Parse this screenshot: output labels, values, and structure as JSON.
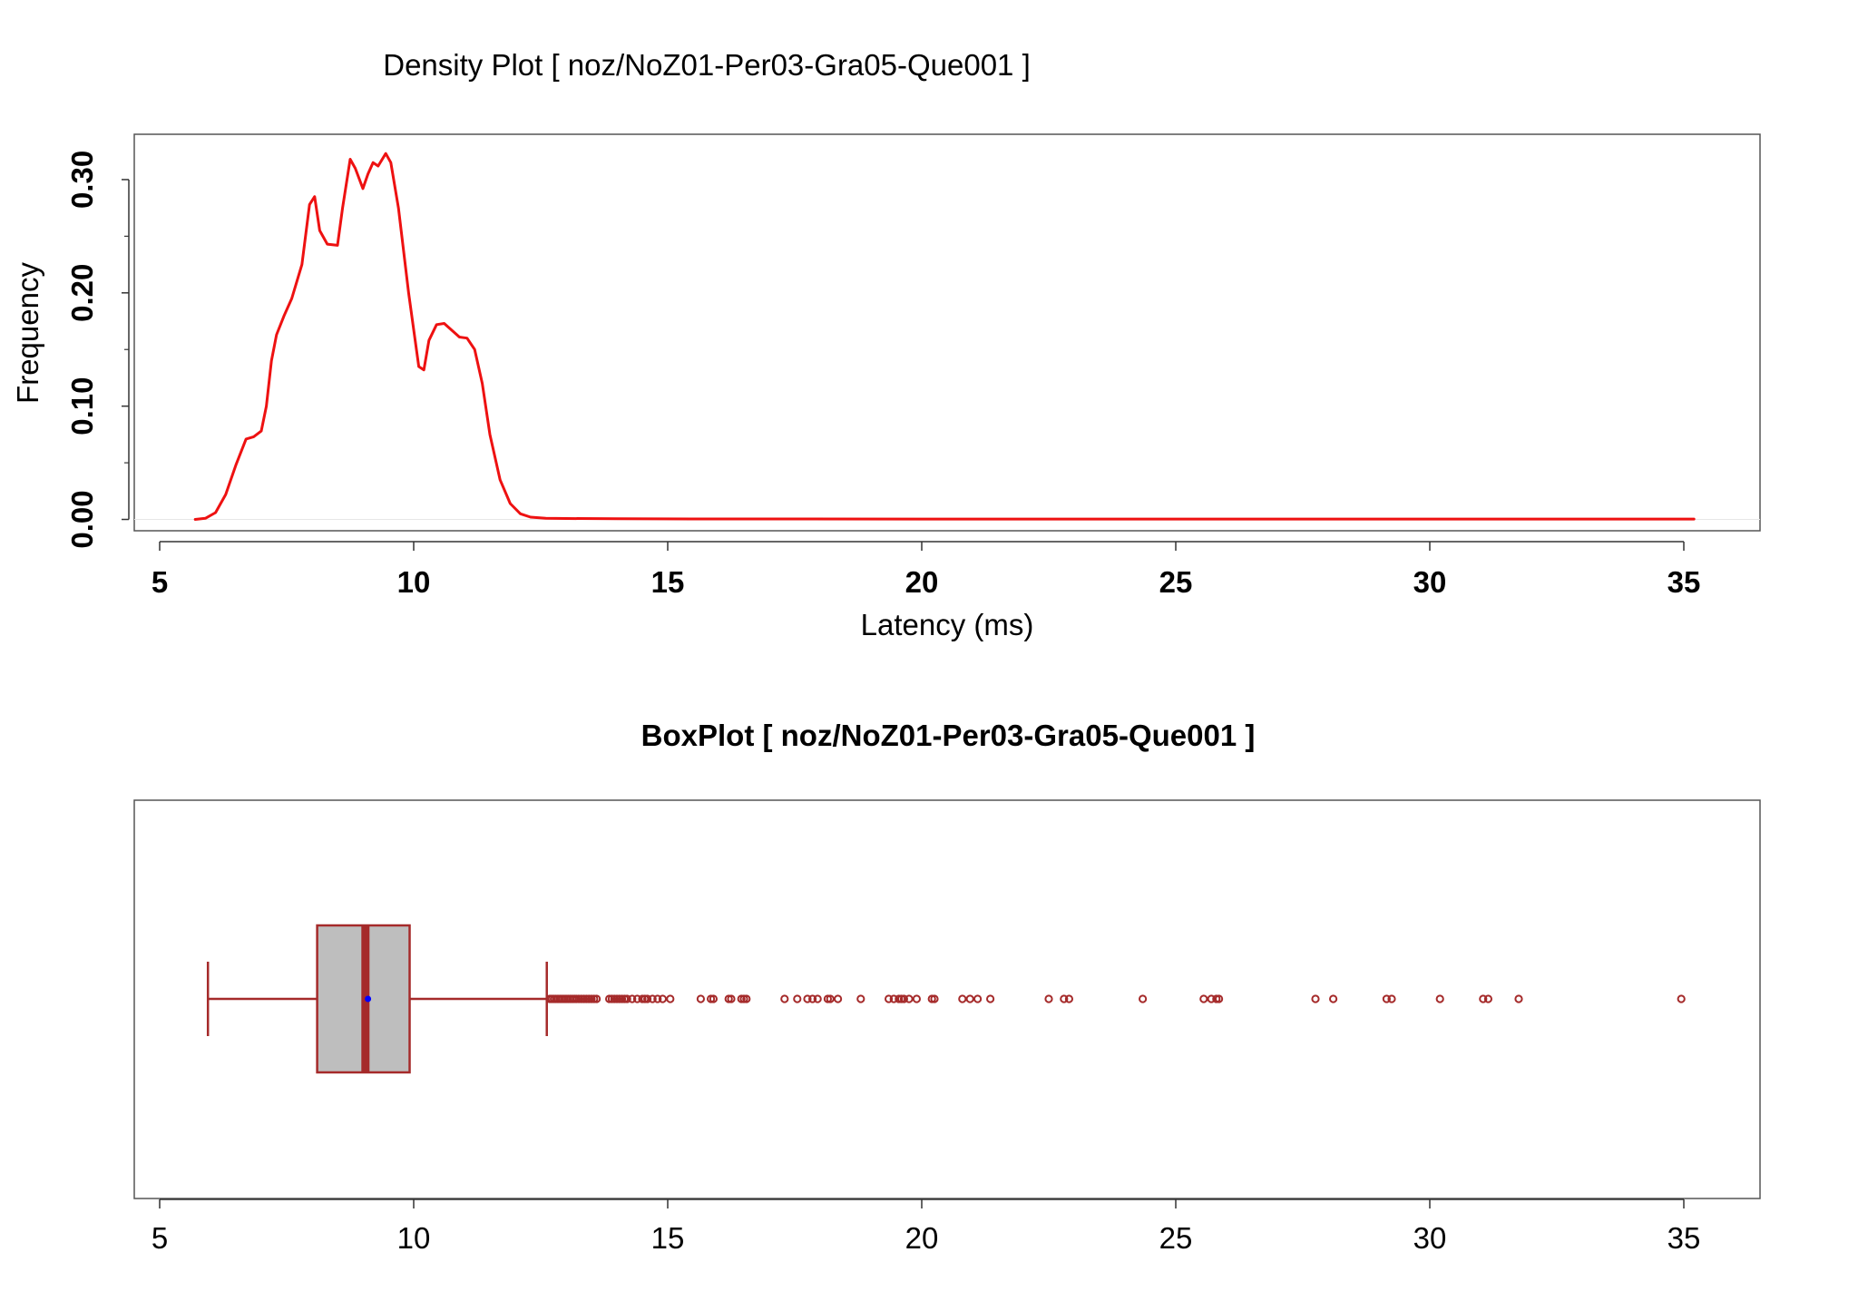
{
  "colors": {
    "density_line": "#ee1111",
    "box_border": "#a52a2a",
    "box_fill": "#bebebe",
    "mean_dot": "#0000ff",
    "frame": "#555555"
  },
  "chart_data": [
    {
      "type": "line",
      "title": "Density Plot [ noz/NoZ01-Per03-Gra05-Que001 ]",
      "xlabel": "Latency (ms)",
      "ylabel": "Frequency",
      "xlim": [
        4.5,
        36.5
      ],
      "ylim": [
        -0.01,
        0.34
      ],
      "x_ticks": [
        5,
        10,
        15,
        20,
        25,
        30,
        35
      ],
      "x_tick_labels": [
        "5",
        "10",
        "15",
        "20",
        "25",
        "30",
        "35"
      ],
      "y_ticks": [
        0.0,
        0.1,
        0.2,
        0.3
      ],
      "y_tick_labels": [
        "0.00",
        "0.10",
        "0.20",
        "0.30"
      ],
      "y_minor_ticks": [
        0.05,
        0.15,
        0.25
      ],
      "grid": false,
      "series": [
        {
          "x": [
            5.7,
            5.9,
            6.1,
            6.3,
            6.5,
            6.7,
            6.85,
            7.0,
            7.1,
            7.2,
            7.3,
            7.45,
            7.6,
            7.8,
            7.95,
            8.05,
            8.15,
            8.3,
            8.5,
            8.6,
            8.75,
            8.85,
            9.0,
            9.1,
            9.2,
            9.3,
            9.45,
            9.55,
            9.7,
            9.9,
            10.1,
            10.2,
            10.3,
            10.45,
            10.6,
            10.75,
            10.9,
            11.05,
            11.2,
            11.35,
            11.5,
            11.7,
            11.9,
            12.1,
            12.3,
            12.6,
            13.0,
            14.0,
            16.0,
            20.0,
            25.0,
            30.0,
            35.2
          ],
          "y": [
            0.0,
            0.001,
            0.006,
            0.022,
            0.048,
            0.071,
            0.073,
            0.078,
            0.1,
            0.14,
            0.163,
            0.18,
            0.195,
            0.225,
            0.278,
            0.285,
            0.255,
            0.243,
            0.242,
            0.275,
            0.318,
            0.31,
            0.292,
            0.305,
            0.315,
            0.312,
            0.323,
            0.315,
            0.275,
            0.2,
            0.135,
            0.132,
            0.158,
            0.172,
            0.173,
            0.167,
            0.161,
            0.16,
            0.15,
            0.12,
            0.075,
            0.035,
            0.014,
            0.005,
            0.002,
            0.001,
            0.0008,
            0.0006,
            0.0004,
            0.0003,
            0.0003,
            0.0003,
            0.0003
          ]
        }
      ]
    },
    {
      "type": "box",
      "title": "BoxPlot [ noz/NoZ01-Per03-Gra05-Que001 ]",
      "xlim": [
        4.5,
        36.5
      ],
      "x_ticks": [
        5,
        10,
        15,
        20,
        25,
        30,
        35
      ],
      "x_tick_labels": [
        "5",
        "10",
        "15",
        "20",
        "25",
        "30",
        "35"
      ],
      "whisker_low": 5.95,
      "q1": 8.1,
      "median": 9.05,
      "mean": 9.1,
      "q3": 9.92,
      "whisker_high": 12.62,
      "outliers": [
        12.68,
        12.72,
        12.76,
        12.8,
        12.84,
        12.88,
        12.92,
        12.96,
        13.0,
        13.04,
        13.08,
        13.12,
        13.16,
        13.2,
        13.25,
        13.3,
        13.35,
        13.4,
        13.45,
        13.5,
        13.55,
        13.6,
        13.85,
        13.9,
        13.95,
        14.0,
        14.05,
        14.1,
        14.15,
        14.2,
        14.3,
        14.4,
        14.5,
        14.55,
        14.6,
        14.7,
        14.8,
        14.9,
        15.05,
        15.65,
        15.85,
        15.9,
        16.2,
        16.25,
        16.45,
        16.5,
        16.55,
        17.3,
        17.55,
        17.75,
        17.85,
        17.95,
        18.15,
        18.2,
        18.35,
        18.8,
        19.35,
        19.45,
        19.55,
        19.6,
        19.65,
        19.75,
        19.9,
        20.2,
        20.25,
        20.8,
        20.95,
        21.1,
        21.35,
        22.5,
        22.8,
        22.9,
        24.35,
        25.55,
        25.7,
        25.8,
        25.85,
        27.75,
        28.1,
        29.15,
        29.25,
        30.2,
        31.05,
        31.15,
        31.75,
        34.95
      ]
    }
  ]
}
